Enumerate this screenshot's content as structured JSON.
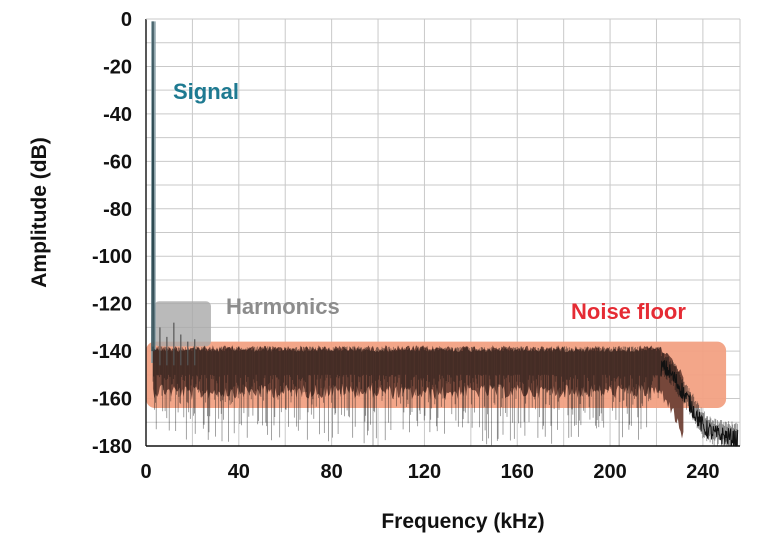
{
  "chart_data": {
    "type": "line",
    "title": "",
    "xlabel": "Frequency (kHz)",
    "ylabel": "Amplitude (dB)",
    "xlim": [
      0,
      256
    ],
    "ylim": [
      -180,
      0
    ],
    "x_tick_labels": [
      "0",
      "40",
      "80",
      "120",
      "160",
      "200",
      "240"
    ],
    "x_ticks": [
      0,
      40,
      80,
      120,
      160,
      200,
      240
    ],
    "y_tick_labels": [
      "0",
      "-20",
      "-40",
      "-60",
      "-80",
      "-100",
      "-120",
      "-140",
      "-160",
      "-180"
    ],
    "y_ticks": [
      0,
      -20,
      -40,
      -60,
      -80,
      -100,
      -120,
      -140,
      -160,
      -180
    ],
    "grid": true,
    "series": [
      {
        "x": [
          0,
          2,
          2.5,
          3,
          3.5,
          4,
          5,
          7,
          10,
          15,
          20,
          30,
          40,
          60,
          80,
          100,
          120,
          140,
          160,
          180,
          200,
          220,
          225,
          230,
          235,
          240,
          245,
          250,
          255
        ],
        "y": [
          -140,
          -140,
          -100,
          -20,
          -100,
          -145,
          -145,
          -145,
          -146,
          -146,
          -147,
          -146,
          -146,
          -146,
          -146,
          -146,
          -147,
          -146,
          -146,
          -146,
          -146,
          -146,
          -148,
          -155,
          -163,
          -172,
          -175,
          -176,
          -177
        ]
      }
    ],
    "annotations": [
      {
        "text": "Signal",
        "color": "#1e7a91"
      },
      {
        "text": "Harmonics",
        "color": "#8c8c8c"
      },
      {
        "text": "Noise floor",
        "color": "#e52b34"
      }
    ],
    "colors": {
      "trace": "#111111",
      "noise_fill": "#6f4136",
      "noise_band": "#f2a183",
      "signal_band": "#7f98a0",
      "harmonics_band": "#a9a9a9",
      "grid": "#c9c9c9"
    }
  }
}
